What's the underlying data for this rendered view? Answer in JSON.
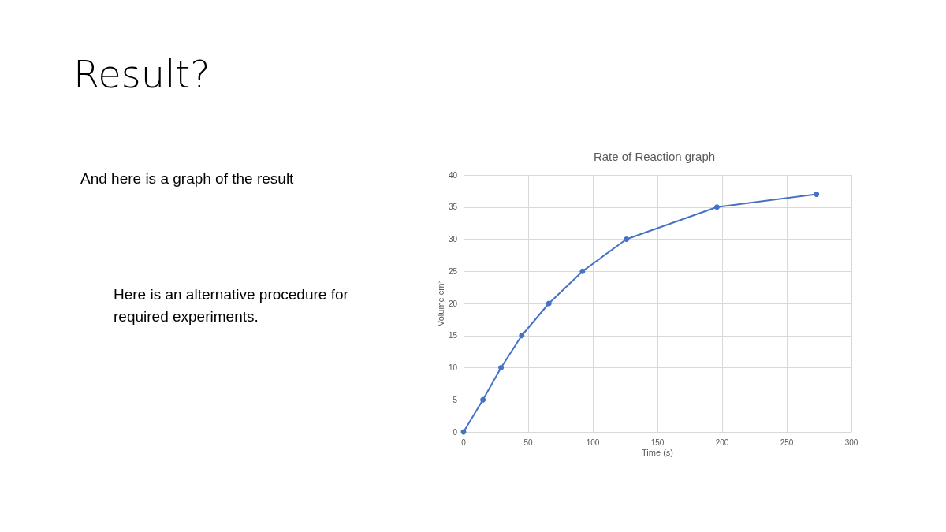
{
  "chart_data": {
    "type": "line",
    "title": "Rate of Reaction graph",
    "xlabel": "Time (s)",
    "ylabel": "Volume cm³",
    "annotations": [
      "Result?",
      "And here is a graph of the result",
      "Here is an alternative procedure for required experiments."
    ],
    "x": [
      0,
      15,
      29,
      45,
      66,
      92,
      126,
      196,
      273
    ],
    "series": [
      {
        "color": "#4472c4",
        "values": [
          0,
          5,
          10,
          15,
          20,
          25,
          30,
          35,
          37
        ]
      }
    ],
    "xlim": [
      0,
      300
    ],
    "xticks": [
      0,
      50,
      100,
      150,
      200,
      250,
      300
    ],
    "ylim": [
      0,
      40
    ],
    "yticks": [
      0,
      5,
      10,
      15,
      20,
      25,
      30,
      35,
      40
    ],
    "grid": true,
    "marker": "circle",
    "line_style": "solid"
  }
}
